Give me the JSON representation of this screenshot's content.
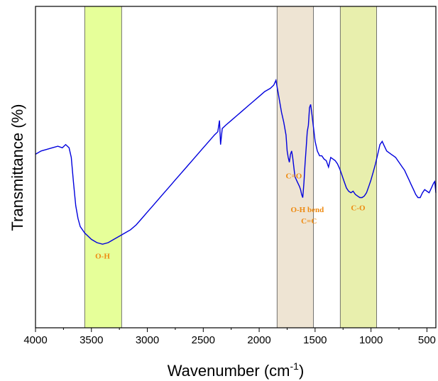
{
  "chart_data": {
    "type": "line",
    "xlabel": "Wavenumber (cm",
    "xlabel_superscript": "-1",
    "xlabel_suffix": ")",
    "ylabel": "Transmittance (%)",
    "xlim": [
      4000,
      420
    ],
    "x_reversed": true,
    "ylim": [
      0,
      100
    ],
    "y_ticks_shown": false,
    "grid": false,
    "x_ticks": [
      4000,
      3500,
      3000,
      2500,
      2000,
      1500,
      1000,
      500
    ],
    "x_tick_labels": [
      "4000",
      "3500",
      "3000",
      "2500",
      "2000",
      "1500",
      "1000",
      "500"
    ],
    "line_color": "#0000dd",
    "bands": [
      {
        "x_from": 3560,
        "x_to": 3230,
        "color": "#e6ff99"
      },
      {
        "x_from": 1840,
        "x_to": 1515,
        "color": "#eee4d3"
      },
      {
        "x_from": 1275,
        "x_to": 950,
        "color": "#e8efad"
      }
    ],
    "annotations": [
      {
        "text": "O-H",
        "x": 3400,
        "y": 21.5,
        "color": "#ee8a10"
      },
      {
        "text": "C=O",
        "x": 1690,
        "y": 46.5,
        "color": "#ee8a10"
      },
      {
        "text": "O-H bend",
        "x": 1570,
        "y": 36,
        "color": "#ee8a10"
      },
      {
        "text": "C=C",
        "x": 1555,
        "y": 32.5,
        "color": "#ee8a10"
      },
      {
        "text": "C-O",
        "x": 1115,
        "y": 36.5,
        "color": "#ee8a10"
      }
    ],
    "series": [
      {
        "x": [
          4000,
          3950,
          3900,
          3850,
          3800,
          3760,
          3730,
          3700,
          3680,
          3660,
          3640,
          3620,
          3600,
          3560,
          3500,
          3450,
          3400,
          3350,
          3300,
          3250,
          3200,
          3150,
          3100,
          3050,
          3000,
          2950,
          2900,
          2850,
          2800,
          2750,
          2700,
          2650,
          2600,
          2550,
          2500,
          2450,
          2400,
          2370,
          2355,
          2345,
          2330,
          2300,
          2250,
          2200,
          2150,
          2100,
          2050,
          2000,
          1950,
          1900,
          1870,
          1850,
          1830,
          1800,
          1780,
          1760,
          1750,
          1740,
          1730,
          1720,
          1710,
          1700,
          1690,
          1680,
          1660,
          1640,
          1630,
          1620,
          1610,
          1600,
          1590,
          1580,
          1570,
          1560,
          1550,
          1540,
          1530,
          1520,
          1510,
          1500,
          1480,
          1460,
          1440,
          1420,
          1400,
          1380,
          1360,
          1340,
          1320,
          1300,
          1280,
          1260,
          1240,
          1220,
          1200,
          1180,
          1160,
          1140,
          1120,
          1100,
          1080,
          1060,
          1040,
          1020,
          1000,
          980,
          960,
          940,
          920,
          900,
          880,
          860,
          840,
          820,
          800,
          780,
          760,
          740,
          720,
          700,
          680,
          660,
          640,
          620,
          600,
          580,
          560,
          540,
          520,
          500,
          480,
          460,
          440,
          430,
          420
        ],
        "y": [
          54,
          55,
          55.5,
          56,
          56.5,
          56,
          57,
          56,
          53,
          45,
          38,
          34,
          31.5,
          29.5,
          27.5,
          26.5,
          26,
          26.5,
          27.5,
          28.5,
          29.5,
          30.5,
          32,
          34,
          36,
          38,
          40,
          42,
          44,
          46,
          48,
          50,
          52,
          54,
          56,
          58,
          60,
          61,
          64.5,
          57,
          62,
          63,
          64.5,
          66,
          67.5,
          69,
          70.5,
          72,
          73.5,
          74.5,
          75.5,
          77,
          73,
          67,
          64,
          60,
          55,
          53,
          51.5,
          54,
          55,
          53,
          50,
          47,
          45.5,
          44,
          43,
          41.5,
          40.5,
          45,
          51,
          56,
          61,
          63,
          68.5,
          69.5,
          67,
          64,
          61,
          58,
          55,
          53.5,
          53.5,
          52.5,
          52,
          50,
          53,
          52.5,
          52,
          51,
          49.5,
          47.5,
          45.5,
          43.5,
          42.5,
          42,
          42.5,
          41.5,
          41,
          40.5,
          40.5,
          41,
          42,
          44,
          46,
          48.5,
          51,
          54,
          57,
          58,
          56.5,
          55,
          54.5,
          54,
          53.5,
          53,
          52,
          51,
          50,
          49,
          47.5,
          46,
          44.5,
          43,
          41.5,
          40.5,
          40.5,
          42,
          43,
          42.5,
          42,
          43.5,
          45,
          45.5,
          42
        ]
      }
    ]
  }
}
